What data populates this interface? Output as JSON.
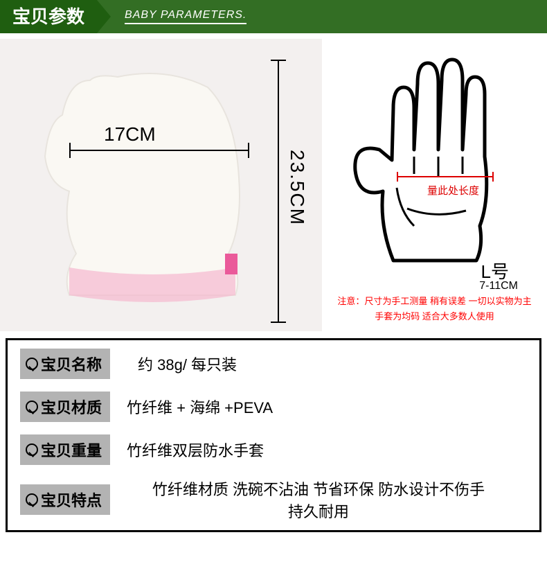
{
  "header": {
    "title_cn": "宝贝参数",
    "title_en": "BABY PARAMETERS."
  },
  "dimensions": {
    "width_label": "17CM",
    "height_label": "23.5CM"
  },
  "hand": {
    "measure_text": "量此处长度",
    "size_label": "L号",
    "size_range": "7-11CM",
    "note1": "注意：尺寸为手工测量 稍有误差 一切以实物为主",
    "note2": "手套为均码 适合大多数人使用"
  },
  "specs": [
    {
      "label": "宝贝名称",
      "value": "约 38g/ 每只装"
    },
    {
      "label": "宝贝材质",
      "value": "竹纤维 + 海绵 +PEVA"
    },
    {
      "label": "宝贝重量",
      "value": "竹纤维双层防水手套"
    },
    {
      "label": "宝贝特点",
      "value": "竹纤维材质  洗碗不沾油 节省环保 防水设计不伤手<br>持久耐用",
      "center": true
    }
  ],
  "colors": {
    "header_bg": "#336e24",
    "tab_bg": "#1f5e10",
    "label_bg": "#b3b3b3",
    "mitten_body": "#faf8f3",
    "mitten_trim": "#f5b8cf",
    "red": "#f00"
  }
}
